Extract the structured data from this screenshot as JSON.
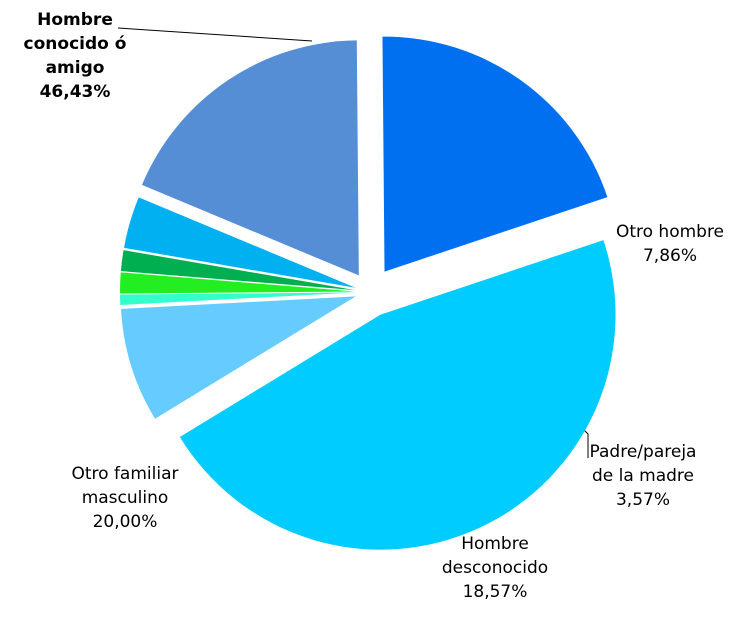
{
  "chart_data": {
    "type": "pie",
    "categories": [
      "Hombre conocido ó amigo",
      "Otro hombre",
      null,
      null,
      null,
      "Padre/pareja de la madre",
      "Hombre desconocido",
      "Otro familiar masculino"
    ],
    "values": [
      46.43,
      7.86,
      0.71,
      1.43,
      1.43,
      3.57,
      18.57,
      20.0
    ],
    "value_labels": [
      "46,43%",
      "7,86%",
      null,
      null,
      null,
      "3,57%",
      "18,57%",
      "20,00%"
    ],
    "colors": [
      "#00ccff",
      "#66ccff",
      "#33ffcc",
      "#22ee22",
      "#00b050",
      "#00b0f0",
      "#558ed5",
      "#0070f0"
    ]
  }
}
